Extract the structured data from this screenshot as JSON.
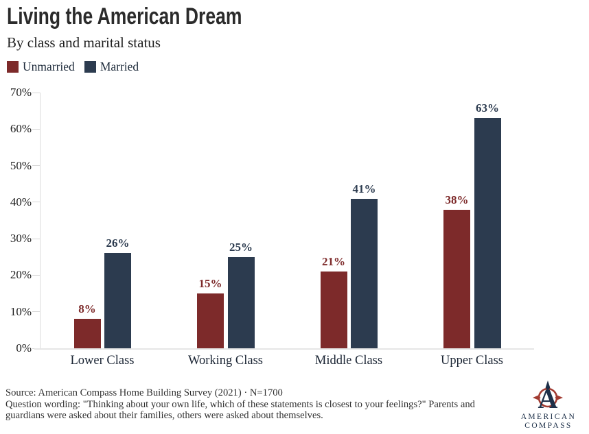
{
  "chart_data": {
    "type": "bar",
    "title": "Living the American Dream",
    "subtitle": "By class and marital status",
    "categories": [
      "Lower Class",
      "Working Class",
      "Middle Class",
      "Upper Class"
    ],
    "series": [
      {
        "name": "Unmarried",
        "color": "#7d2a2a",
        "values": [
          8,
          15,
          21,
          38
        ]
      },
      {
        "name": "Married",
        "color": "#2c3b4f",
        "values": [
          26,
          25,
          41,
          63
        ]
      }
    ],
    "xlabel": "",
    "ylabel": "",
    "ylim": [
      0,
      70
    ],
    "ytick_step": 10,
    "ytick_suffix": "%",
    "value_label_suffix": "%",
    "grid": false,
    "legend_position": "top-left",
    "axis_color": "#dcdcdc"
  },
  "footer": {
    "source_line": "Source: American Compass Home Building Survey (2021) · N=1700",
    "question_lines": [
      "Question wording: \"Thinking about your own life, which of these statements is closest to your feelings?\" Parents and",
      "guardians were asked about their families, others were asked about themselves."
    ],
    "logo": {
      "line1": "AMERICAN",
      "line2": "COMPASS",
      "red": "#a23b31",
      "navy": "#1e3049"
    }
  }
}
